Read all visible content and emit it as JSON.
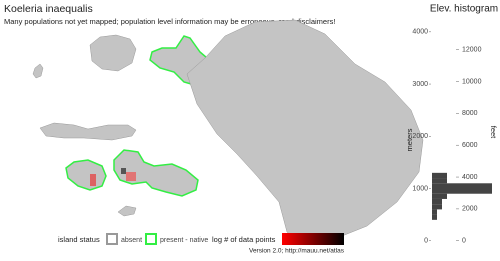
{
  "header": {
    "title": "Koeleria inaequalis",
    "subtitle": "Many populations not yet mapped; population level information may be erroneous, read disclaimers!"
  },
  "legend": {
    "island_status": "island status",
    "absent": "absent",
    "present": "present - native",
    "density": "log # of data points"
  },
  "footer": "Version 2.0; http://mauu.net/atlas",
  "chart_data": {
    "type": "histogram",
    "title": "Elev. histogram",
    "y_label": "meters",
    "y2_label": "feet",
    "bins": [
      400,
      500,
      600,
      700,
      800,
      900,
      1000,
      1100,
      1200,
      1300
    ],
    "counts": [
      1,
      1,
      2,
      2,
      3,
      12,
      12,
      3,
      3
    ],
    "color": "#444444",
    "ylim": [
      -120,
      4150
    ],
    "yticks": [
      0,
      1000,
      2000,
      3000,
      4000
    ],
    "y2lim": [
      -394,
      13615
    ],
    "y2ticks": [
      0,
      2000,
      4000,
      6000,
      8000,
      10000,
      12000
    ]
  }
}
